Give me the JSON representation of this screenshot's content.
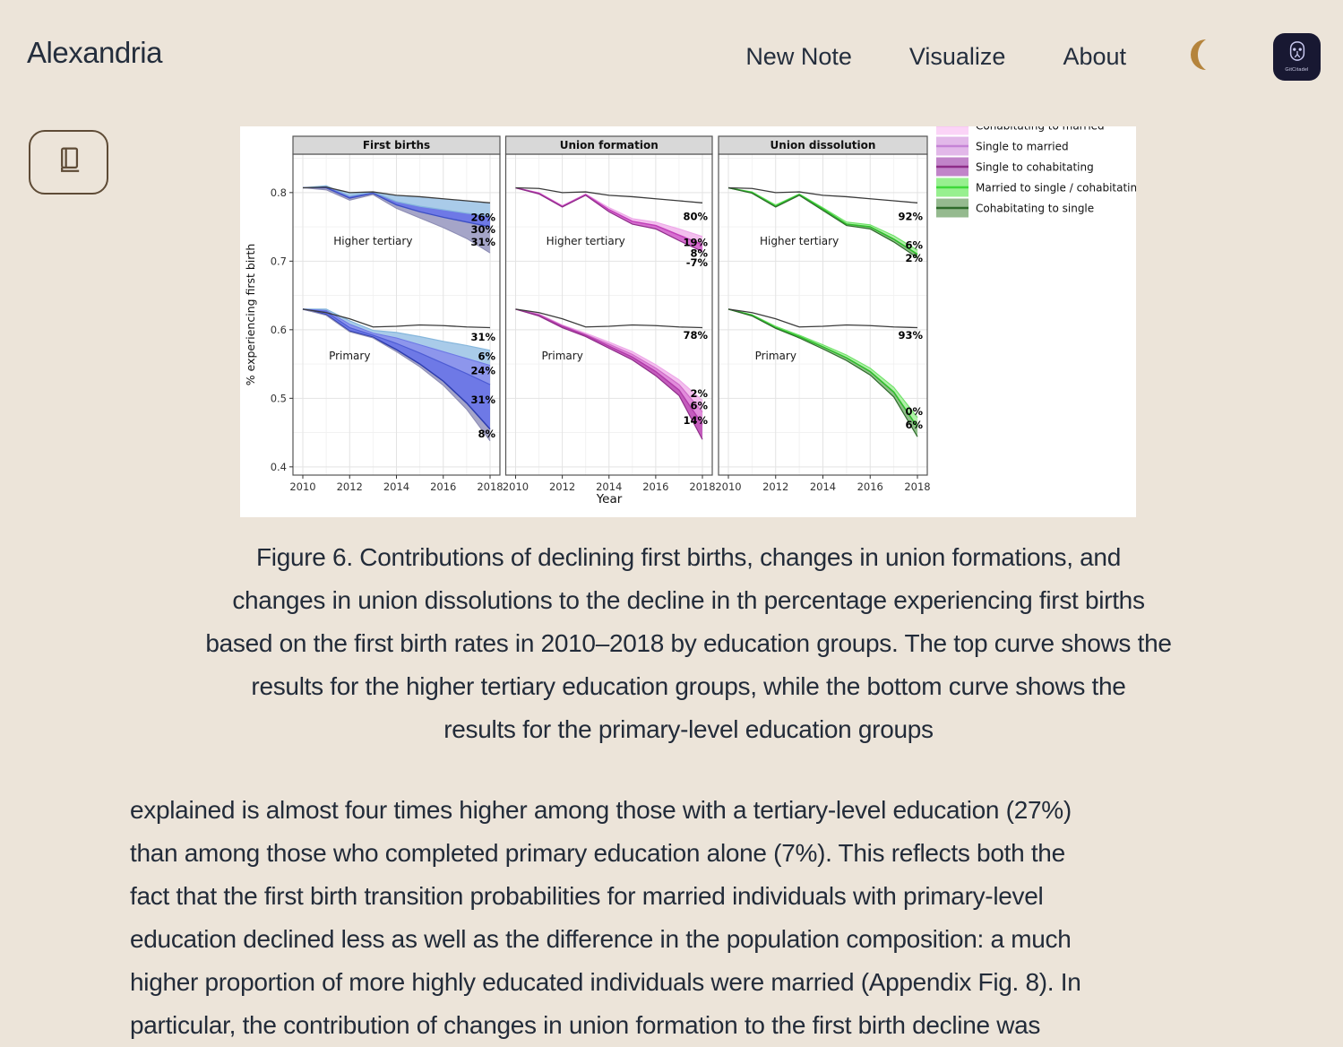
{
  "app": {
    "title": "Alexandria",
    "logo_text": "GitCitadel"
  },
  "colors": {
    "background": "#ece4d9",
    "text": "#222b39",
    "moon": "#b5843c",
    "logo_bg": "#181832",
    "button_brown": "#5e4b36"
  },
  "nav": {
    "items": [
      {
        "label": "New Note"
      },
      {
        "label": "Visualize"
      },
      {
        "label": "About"
      }
    ]
  },
  "figure": {
    "caption": "Figure 6. Contributions of declining first births, changes in union formations, and\nchanges in union dissolutions to the decline in th percentage experiencing first births\nbased on the first birth rates in 2010–2018 by education groups. The top curve shows the\nresults for the higher tertiary education groups, while the bottom curve shows the\nresults for the primary-level education groups"
  },
  "article": {
    "text": "explained is almost four times higher among those with a tertiary-level education (27%)\nthan among those who completed primary education alone (7%). This reflects both the\nfact that the first birth transition probabilities for married individuals with primary-level\neducation declined less as well as the difference in the population composition: a much\nhigher proportion of more highly educated individuals were married (Appendix Fig. 8). In\nparticular, the contribution of changes in union formation to the first birth decline was"
  },
  "chart_data": {
    "type": "area",
    "title": "",
    "xlabel": "Year",
    "ylabel": "% experiencing first birth",
    "x": [
      2010,
      2011,
      2012,
      2013,
      2014,
      2015,
      2016,
      2017,
      2018
    ],
    "xticks": [
      2010,
      2012,
      2014,
      2016,
      2018
    ],
    "yticks": [
      0.4,
      0.5,
      0.6,
      0.7,
      0.8
    ],
    "ylim": [
      0.388,
      0.856
    ],
    "legend_position": "right",
    "grid": true,
    "legend": [
      {
        "label": "Cohabitating to married",
        "fill": "#fbd4f7",
        "line": "#eda6e8"
      },
      {
        "label": "Single to married",
        "fill": "#e2b8e9",
        "line": "#c583d6"
      },
      {
        "label": "Single to cohabitating",
        "fill": "#c184c9",
        "line": "#8d2d88"
      },
      {
        "label": "Married to single / cohabitating",
        "fill": "#97f08f",
        "line": "#3fd83a"
      },
      {
        "label": "Cohabitating to single",
        "fill": "#95ba8f",
        "line": "#2e6b2b"
      }
    ],
    "panels": [
      {
        "title": "First births",
        "groups": [
          {
            "name": "Higher tertiary",
            "name_x": 2013,
            "name_y": 0.729,
            "curves": {
              "b": [
                0.807,
                0.808,
                0.8,
                0.801,
                0.796,
                0.794,
                0.791,
                0.788,
                0.785
              ],
              "c1": [
                0.807,
                0.81,
                0.795,
                0.801,
                0.787,
                0.78,
                0.775,
                0.77,
                0.766
              ],
              "c2": [
                0.807,
                0.807,
                0.792,
                0.799,
                0.782,
                0.772,
                0.764,
                0.757,
                0.75
              ],
              "c3": [
                0.807,
                0.804,
                0.789,
                0.797,
                0.777,
                0.763,
                0.749,
                0.733,
                0.712
              ]
            },
            "bands": [
              [
                "b",
                "c1",
                "#a9cbe9"
              ],
              [
                "c1",
                "c2",
                "#6e79e6"
              ],
              [
                "c2",
                "c3",
                "#a5a5c8"
              ]
            ],
            "lines": [
              [
                "c1",
                "#86b7dc",
                1.2
              ],
              [
                "c2",
                "#3c4fc4",
                1.4
              ],
              [
                "c3",
                "#8d8db4",
                1.1
              ],
              [
                "b",
                "#3b3b3b",
                1.3
              ]
            ],
            "labels": [
              [
                "26%",
                0.764
              ],
              [
                "30%",
                0.746
              ],
              [
                "31%",
                0.728
              ]
            ]
          },
          {
            "name": "Primary",
            "name_x": 2012,
            "name_y": 0.562,
            "curves": {
              "b": [
                0.63,
                0.625,
                0.616,
                0.604,
                0.605,
                0.607,
                0.606,
                0.604,
                0.603
              ],
              "c1": [
                0.63,
                0.63,
                0.613,
                0.599,
                0.596,
                0.59,
                0.583,
                0.577,
                0.57
              ],
              "c2": [
                0.63,
                0.628,
                0.608,
                0.595,
                0.588,
                0.578,
                0.568,
                0.558,
                0.548
              ],
              "c3": [
                0.63,
                0.626,
                0.603,
                0.592,
                0.58,
                0.566,
                0.551,
                0.536,
                0.52
              ],
              "c4": [
                0.63,
                0.622,
                0.598,
                0.589,
                0.571,
                0.55,
                0.525,
                0.493,
                0.455
              ],
              "c5": [
                0.63,
                0.621,
                0.597,
                0.588,
                0.568,
                0.546,
                0.519,
                0.484,
                0.438
              ]
            },
            "bands": [
              [
                "c1",
                "c2",
                "#a9cbe9"
              ],
              [
                "c2",
                "c3",
                "#8d96ec"
              ],
              [
                "c3",
                "c4",
                "#6e79e6"
              ],
              [
                "c4",
                "c5",
                "#a5a5c8"
              ]
            ],
            "lines": [
              [
                "c1",
                "#86b7dc",
                1.2
              ],
              [
                "c2",
                "#6e79e6",
                1.1
              ],
              [
                "c3",
                "#4d5cd4",
                1.2
              ],
              [
                "c4",
                "#2c3cae",
                1.5
              ],
              [
                "c5",
                "#8d8db4",
                1.1
              ],
              [
                "b",
                "#3b3b3b",
                1.3
              ]
            ],
            "labels": [
              [
                "31%",
                0.589
              ],
              [
                "6%",
                0.561
              ],
              [
                "24%",
                0.54
              ],
              [
                "31%",
                0.498
              ],
              [
                "8%",
                0.448
              ]
            ]
          }
        ]
      },
      {
        "title": "Union formation",
        "groups": [
          {
            "name": "Higher tertiary",
            "name_x": 2013,
            "name_y": 0.729,
            "curves": {
              "b": [
                0.807,
                0.806,
                0.8,
                0.801,
                0.796,
                0.794,
                0.791,
                0.788,
                0.785
              ],
              "c1": [
                0.807,
                0.8,
                0.781,
                0.798,
                0.778,
                0.762,
                0.757,
                0.747,
                0.736
              ],
              "c2": [
                0.807,
                0.799,
                0.78,
                0.797,
                0.775,
                0.758,
                0.752,
                0.738,
                0.724
              ],
              "c3": [
                0.807,
                0.798,
                0.779,
                0.796,
                0.772,
                0.754,
                0.747,
                0.73,
                0.714
              ]
            },
            "bands": [
              [
                "c1",
                "c2",
                "#f3bfee"
              ],
              [
                "c2",
                "c3",
                "#d66fd0"
              ]
            ],
            "lines": [
              [
                "c1",
                "#eda6e8",
                1.1
              ],
              [
                "c2",
                "#c13fb8",
                1.5
              ],
              [
                "c3",
                "#8d2d88",
                1.2
              ],
              [
                "b",
                "#3b3b3b",
                1.3
              ]
            ],
            "labels": [
              [
                "80%",
                0.765
              ],
              [
                "19%",
                0.727
              ],
              [
                "8%",
                0.7115
              ],
              [
                "-7%",
                0.698
              ]
            ]
          },
          {
            "name": "Primary",
            "name_x": 2012,
            "name_y": 0.562,
            "curves": {
              "b": [
                0.63,
                0.625,
                0.616,
                0.604,
                0.605,
                0.607,
                0.606,
                0.604,
                0.603
              ],
              "p1": [
                0.63,
                0.623,
                0.607,
                0.595,
                0.582,
                0.568,
                0.549,
                0.527,
                0.497
              ],
              "p2": [
                0.63,
                0.622,
                0.606,
                0.593,
                0.579,
                0.564,
                0.544,
                0.52,
                0.48
              ],
              "p3": [
                0.63,
                0.621,
                0.605,
                0.592,
                0.576,
                0.56,
                0.539,
                0.512,
                0.462
              ],
              "p4": [
                0.63,
                0.62,
                0.603,
                0.59,
                0.573,
                0.556,
                0.533,
                0.504,
                0.44
              ]
            },
            "bands": [
              [
                "p1",
                "p2",
                "#f3bfee"
              ],
              [
                "p2",
                "p3",
                "#e18cdb"
              ],
              [
                "p3",
                "p4",
                "#c45cbd"
              ]
            ],
            "lines": [
              [
                "p1",
                "#eda6e8",
                1.1
              ],
              [
                "p2",
                "#cf6cc8",
                1.2
              ],
              [
                "p3",
                "#b13ba9",
                1.4
              ],
              [
                "p4",
                "#8d2d88",
                1.2
              ],
              [
                "b",
                "#3b3b3b",
                1.3
              ]
            ],
            "labels": [
              [
                "78%",
                0.592
              ],
              [
                "2%",
                0.507
              ],
              [
                "6%",
                0.489
              ],
              [
                "14%",
                0.468
              ]
            ]
          }
        ]
      },
      {
        "title": "Union dissolution",
        "groups": [
          {
            "name": "Higher tertiary",
            "name_x": 2013,
            "name_y": 0.729,
            "curves": {
              "b": [
                0.807,
                0.806,
                0.8,
                0.801,
                0.796,
                0.794,
                0.791,
                0.788,
                0.785
              ],
              "g1": [
                0.807,
                0.801,
                0.782,
                0.798,
                0.778,
                0.757,
                0.753,
                0.737,
                0.716
              ],
              "g2": [
                0.807,
                0.8,
                0.78,
                0.797,
                0.776,
                0.754,
                0.75,
                0.732,
                0.71
              ],
              "g3": [
                0.807,
                0.799,
                0.779,
                0.796,
                0.774,
                0.752,
                0.747,
                0.728,
                0.705
              ]
            },
            "bands": [
              [
                "g1",
                "g2",
                "#b2f0aa"
              ],
              [
                "g2",
                "g3",
                "#8fbf89"
              ]
            ],
            "lines": [
              [
                "g1",
                "#6ce265",
                1.1
              ],
              [
                "g2",
                "#2dbd2a",
                1.6
              ],
              [
                "g3",
                "#2e6b2b",
                1.2
              ],
              [
                "b",
                "#3b3b3b",
                1.3
              ]
            ],
            "labels": [
              [
                "92%",
                0.765
              ],
              [
                "6%",
                0.723
              ],
              [
                "2%",
                0.7045
              ]
            ]
          },
          {
            "name": "Primary",
            "name_x": 2012,
            "name_y": 0.562,
            "curves": {
              "b": [
                0.63,
                0.625,
                0.616,
                0.604,
                0.605,
                0.607,
                0.606,
                0.604,
                0.603
              ],
              "h1": [
                0.63,
                0.622,
                0.605,
                0.592,
                0.578,
                0.563,
                0.544,
                0.516,
                0.472
              ],
              "h2": [
                0.63,
                0.621,
                0.603,
                0.59,
                0.575,
                0.559,
                0.539,
                0.509,
                0.458
              ],
              "h3": [
                0.63,
                0.62,
                0.602,
                0.588,
                0.572,
                0.555,
                0.534,
                0.502,
                0.444
              ]
            },
            "bands": [
              [
                "h1",
                "h2",
                "#b2f0aa"
              ],
              [
                "h2",
                "h3",
                "#8fbf89"
              ]
            ],
            "lines": [
              [
                "h1",
                "#6ce265",
                1.1
              ],
              [
                "h2",
                "#2dbd2a",
                1.6
              ],
              [
                "h3",
                "#2e6b2b",
                1.2
              ],
              [
                "b",
                "#3b3b3b",
                1.3
              ]
            ],
            "labels": [
              [
                "93%",
                0.592
              ],
              [
                "0%",
                0.4805
              ],
              [
                "6%",
                0.461
              ]
            ]
          }
        ]
      }
    ]
  }
}
